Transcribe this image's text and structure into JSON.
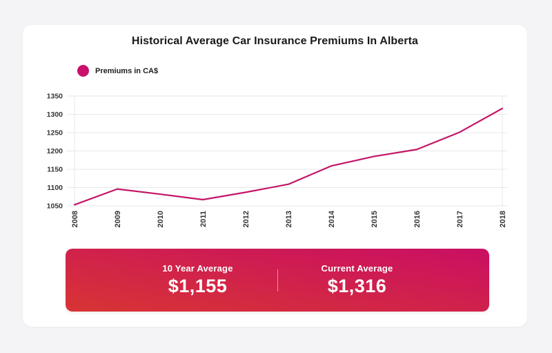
{
  "colors": {
    "page_background": "#f4f4f6",
    "panel_background": "#ffffff",
    "line": "#c31567",
    "legend_dot": "#c8106c",
    "grid": "#e7e7e9",
    "tick_text": "#35353a",
    "summary_gradient_start": "#c90f63",
    "summary_gradient_end": "#d83434"
  },
  "chart_data": {
    "type": "line",
    "title": "Historical Average Car Insurance Premiums In Alberta",
    "legend": [
      {
        "label": "Premiums in CA$",
        "color": "#c8106c"
      }
    ],
    "legend_position": "top-left",
    "categories": [
      "2008",
      "2009",
      "2010",
      "2011",
      "2012",
      "2013",
      "2014",
      "2015",
      "2016",
      "2017",
      "2018"
    ],
    "series": [
      {
        "name": "Premiums in CA$",
        "color": "#c31567",
        "values": [
          1053,
          1096,
          1082,
          1067,
          1087,
          1109,
          1159,
          1185,
          1204,
          1251,
          1316
        ]
      }
    ],
    "xlabel": "",
    "ylabel": "",
    "ylim": [
      1050,
      1350
    ],
    "yticks": [
      1050,
      1100,
      1150,
      1200,
      1250,
      1300,
      1350
    ],
    "grid": "horizontal",
    "x_tick_rotation": -90
  },
  "summary": {
    "stats": [
      {
        "label": "10 Year Average",
        "value": "$1,155"
      },
      {
        "label": "Current Average",
        "value": "$1,316"
      }
    ]
  }
}
